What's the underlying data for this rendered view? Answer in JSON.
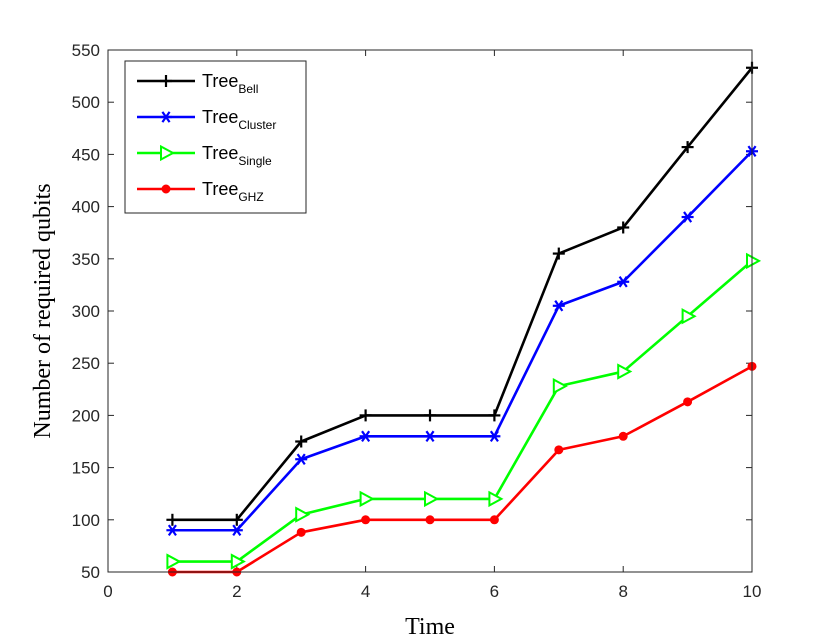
{
  "chart_data": {
    "type": "line",
    "title": "",
    "xlabel": "Time",
    "ylabel": "Number of required qubits",
    "xlim": [
      0,
      10
    ],
    "ylim": [
      50,
      550
    ],
    "xticks": [
      0,
      2,
      4,
      6,
      8,
      10
    ],
    "yticks": [
      50,
      100,
      150,
      200,
      250,
      300,
      350,
      400,
      450,
      500,
      550
    ],
    "x": [
      1,
      2,
      3,
      4,
      5,
      6,
      7,
      8,
      9,
      10
    ],
    "legend_position": "top-left",
    "grid": false,
    "series": [
      {
        "name": "Tree",
        "subscript": "Bell",
        "color": "#000000",
        "marker": "plus",
        "values": [
          100,
          100,
          175,
          200,
          200,
          200,
          355,
          380,
          457,
          533
        ]
      },
      {
        "name": "Tree",
        "subscript": "Cluster",
        "color": "#0000ff",
        "marker": "asterisk",
        "values": [
          90,
          90,
          158,
          180,
          180,
          180,
          305,
          328,
          390,
          453
        ]
      },
      {
        "name": "Tree",
        "subscript": "Single",
        "color": "#00ff00",
        "marker": "triangle-right",
        "values": [
          60,
          60,
          105,
          120,
          120,
          120,
          228,
          242,
          295,
          348
        ]
      },
      {
        "name": "Tree",
        "subscript": "GHZ",
        "color": "#ff0000",
        "marker": "dot",
        "values": [
          50,
          50,
          88,
          100,
          100,
          100,
          167,
          180,
          213,
          247
        ]
      }
    ]
  }
}
